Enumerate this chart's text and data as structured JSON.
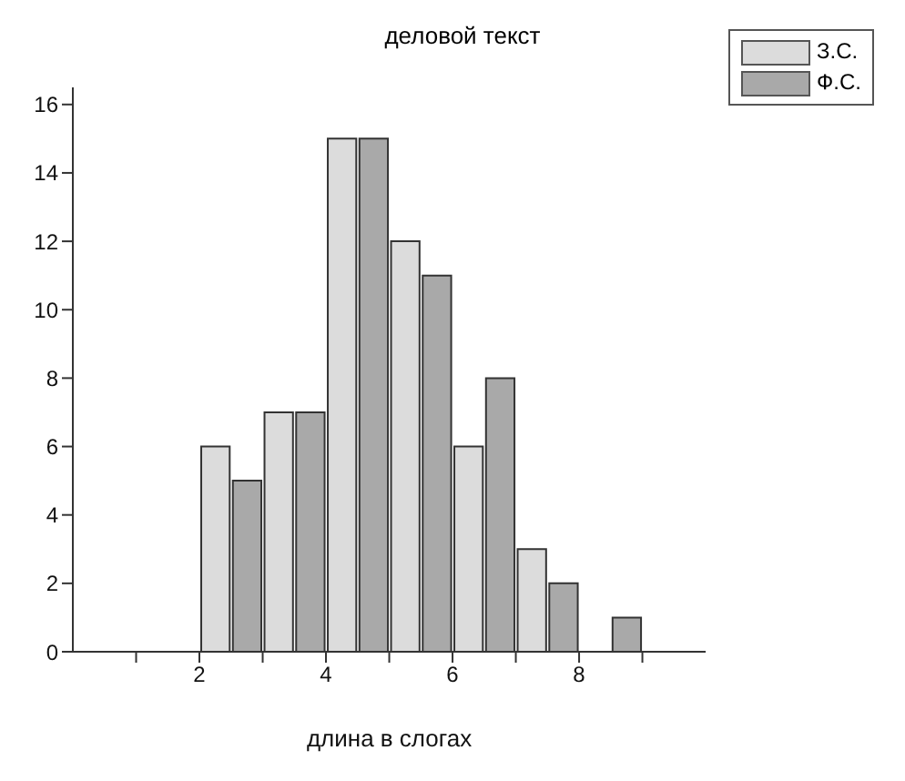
{
  "chart_data": {
    "type": "bar",
    "title": "деловой текст",
    "xlabel": "длина в слогах",
    "series": [
      {
        "name": "З.С.",
        "color": "#dcdcdc",
        "x": [
          2.25,
          3.25,
          4.25,
          5.25,
          6.25,
          7.25
        ],
        "values": [
          6,
          7,
          15,
          12,
          6,
          3
        ]
      },
      {
        "name": "Ф.С.",
        "color": "#a9a9a9",
        "x": [
          2.75,
          3.75,
          4.75,
          5.75,
          6.75,
          7.75,
          8.75
        ],
        "values": [
          5,
          7,
          15,
          11,
          8,
          2,
          1
        ]
      }
    ],
    "xlim": [
      0,
      10
    ],
    "xticks": [
      {
        "value": 1,
        "label": null
      },
      2,
      {
        "value": 3,
        "label": null
      },
      4,
      {
        "value": 5,
        "label": null
      },
      6,
      {
        "value": 7,
        "label": null
      },
      8,
      {
        "value": 9,
        "label": null
      }
    ],
    "ylim": [
      0,
      16.5
    ],
    "yticks": [
      0,
      2,
      4,
      6,
      8,
      10,
      12,
      14,
      16
    ],
    "grid": false,
    "legend": "top right"
  }
}
